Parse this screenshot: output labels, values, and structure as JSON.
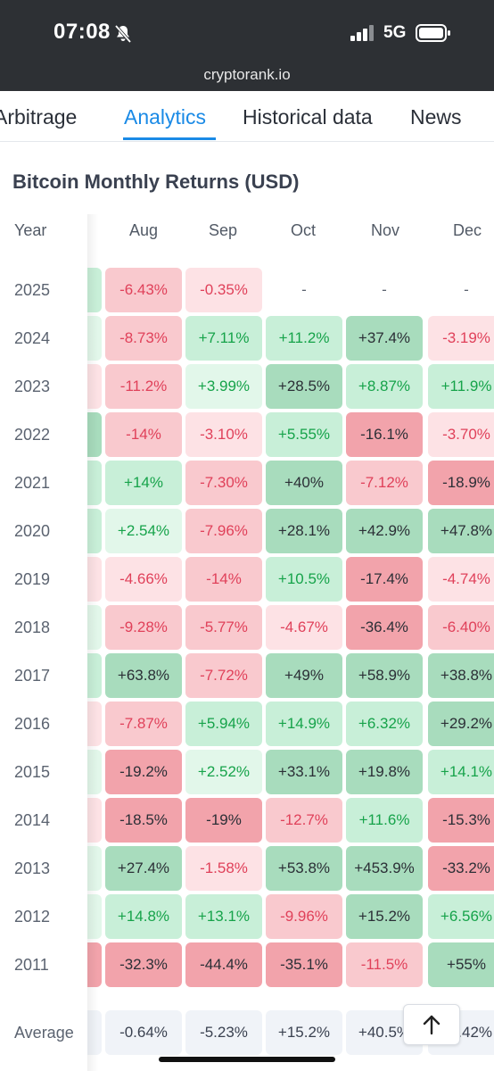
{
  "status": {
    "time": "07:08",
    "network": "5G"
  },
  "browser": {
    "url": "cryptorank.io"
  },
  "tabs": [
    {
      "label": "Arbitrage",
      "active": false
    },
    {
      "label": "Analytics",
      "active": true
    },
    {
      "label": "Historical data",
      "active": false
    },
    {
      "label": "News",
      "active": false
    }
  ],
  "page": {
    "title": "Bitcoin Monthly Returns (USD)"
  },
  "table": {
    "year_header": "Year",
    "months": [
      "Aug",
      "Sep",
      "Oct",
      "Nov",
      "Dec"
    ],
    "rows": [
      {
        "year": "2025",
        "values": [
          "-6.43%",
          "-0.35%",
          "-",
          "-",
          "-"
        ]
      },
      {
        "year": "2024",
        "values": [
          "-8.73%",
          "+7.11%",
          "+11.2%",
          "+37.4%",
          "-3.19%"
        ]
      },
      {
        "year": "2023",
        "values": [
          "-11.2%",
          "+3.99%",
          "+28.5%",
          "+8.87%",
          "+11.9%"
        ]
      },
      {
        "year": "2022",
        "values": [
          "-14%",
          "-3.10%",
          "+5.55%",
          "-16.1%",
          "-3.70%"
        ]
      },
      {
        "year": "2021",
        "values": [
          "+14%",
          "-7.30%",
          "+40%",
          "-7.12%",
          "-18.9%"
        ]
      },
      {
        "year": "2020",
        "values": [
          "+2.54%",
          "-7.96%",
          "+28.1%",
          "+42.9%",
          "+47.8%"
        ]
      },
      {
        "year": "2019",
        "values": [
          "-4.66%",
          "-14%",
          "+10.5%",
          "-17.4%",
          "-4.74%"
        ]
      },
      {
        "year": "2018",
        "values": [
          "-9.28%",
          "-5.77%",
          "-4.67%",
          "-36.4%",
          "-6.40%"
        ]
      },
      {
        "year": "2017",
        "values": [
          "+63.8%",
          "-7.72%",
          "+49%",
          "+58.9%",
          "+38.8%"
        ]
      },
      {
        "year": "2016",
        "values": [
          "-7.87%",
          "+5.94%",
          "+14.9%",
          "+6.32%",
          "+29.2%"
        ]
      },
      {
        "year": "2015",
        "values": [
          "-19.2%",
          "+2.52%",
          "+33.1%",
          "+19.8%",
          "+14.1%"
        ]
      },
      {
        "year": "2014",
        "values": [
          "-18.5%",
          "-19%",
          "-12.7%",
          "+11.6%",
          "-15.3%"
        ]
      },
      {
        "year": "2013",
        "values": [
          "+27.4%",
          "-1.58%",
          "+53.8%",
          "+453.9%",
          "-33.2%"
        ]
      },
      {
        "year": "2012",
        "values": [
          "+14.8%",
          "+13.1%",
          "-9.96%",
          "+15.2%",
          "+6.56%"
        ]
      },
      {
        "year": "2011",
        "values": [
          "-32.3%",
          "-44.4%",
          "-35.1%",
          "-11.5%",
          "+55%"
        ]
      }
    ],
    "average": {
      "label": "Average",
      "values": [
        "-0.64%",
        "-5.23%",
        "+15.2%",
        "+40.5%",
        "+4.42%"
      ]
    }
  },
  "colors": {
    "accent": "#1a8ae6",
    "strong_green": "#a8dcbd",
    "mid_green": "#c8efd8",
    "light_green": "#e2f7ea",
    "strong_red": "#f2a3ab",
    "mid_red": "#f9c9ce",
    "light_red": "#fde2e5",
    "green_text": "#16a34a",
    "red_text": "#e0415a",
    "dark_text": "#2b2f36"
  },
  "icons": {
    "scroll_top": "arrow-up-icon",
    "mute": "bell-slash-icon"
  }
}
